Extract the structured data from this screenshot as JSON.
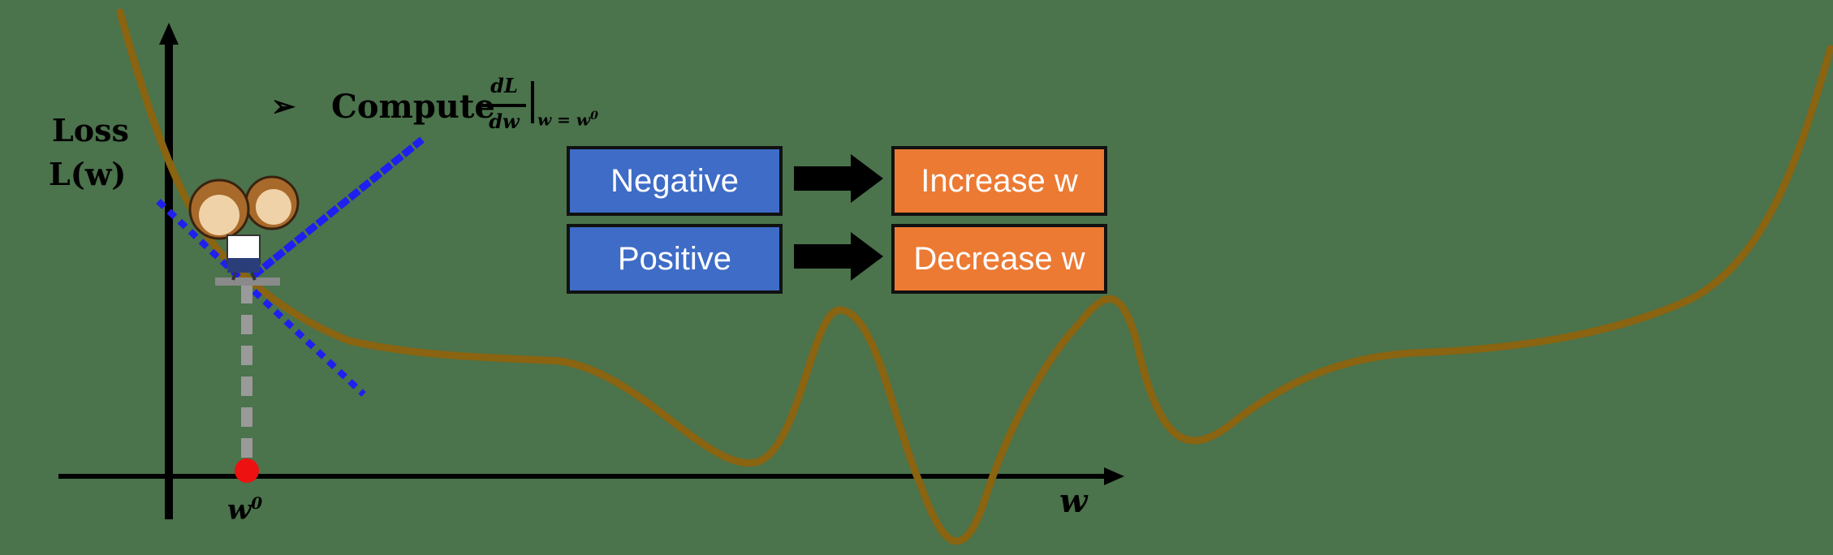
{
  "axis": {
    "y_label_line1": "Loss",
    "y_label_line2": "L(w)",
    "x_label": "w",
    "x_point_label": "w",
    "x_point_superscript": "0"
  },
  "compute": {
    "bullet": "➢",
    "text": "Compute",
    "frac_num": "dL",
    "frac_den": "dw",
    "eval_sub": "w = w",
    "eval_sup": "0"
  },
  "rules": [
    {
      "sign": "Negative",
      "action": "Increase w"
    },
    {
      "sign": "Positive",
      "action": "Decrease w"
    }
  ],
  "colors": {
    "background": "#4b734c",
    "curve": "#8a6410",
    "tangent": "#1f1ff0",
    "point": "#ee1111",
    "sign_box": "#3e6cc6",
    "action_box": "#ec7a33"
  }
}
